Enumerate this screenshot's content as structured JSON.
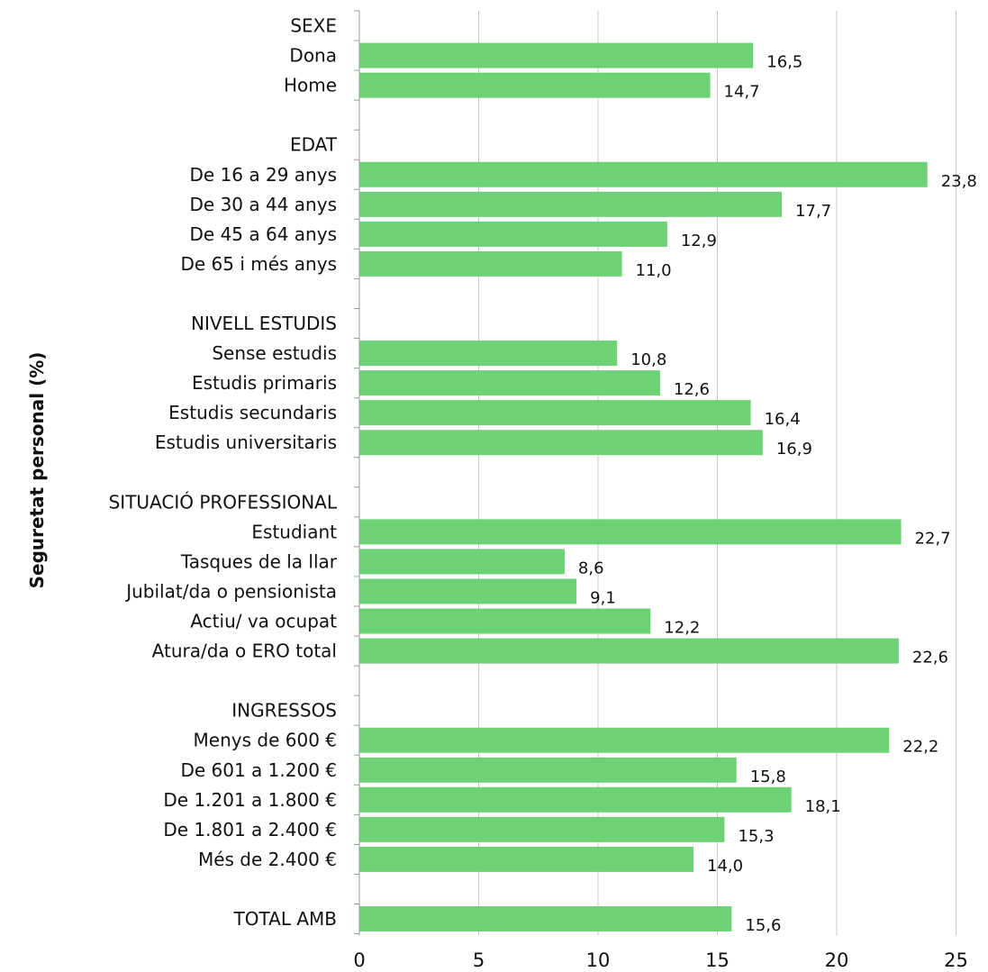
{
  "chart_data": {
    "type": "bar",
    "orientation": "horizontal",
    "ylabel": "Seguretat personal  (%)",
    "xlabel": "",
    "xlim": [
      0,
      25
    ],
    "xticks": [
      "0",
      "5",
      "10",
      "15",
      "20",
      "25"
    ],
    "grid": "vertical",
    "bar_color": "#6dd175",
    "rows": [
      {
        "label": "SEXE",
        "header": true
      },
      {
        "label": "Dona",
        "value": 16.5,
        "value_label": "16,5"
      },
      {
        "label": "Home",
        "value": 14.7,
        "value_label": "14,7"
      },
      {
        "label": "",
        "spacer": true
      },
      {
        "label": "EDAT",
        "header": true
      },
      {
        "label": "De 16 a 29 anys",
        "value": 23.8,
        "value_label": "23,8"
      },
      {
        "label": "De 30 a 44 anys",
        "value": 17.7,
        "value_label": "17,7"
      },
      {
        "label": "De 45 a 64 anys",
        "value": 12.9,
        "value_label": "12,9"
      },
      {
        "label": "De 65 i més anys",
        "value": 11.0,
        "value_label": "11,0"
      },
      {
        "label": "",
        "spacer": true
      },
      {
        "label": "NIVELL ESTUDIS",
        "header": true
      },
      {
        "label": "Sense estudis",
        "value": 10.8,
        "value_label": "10,8"
      },
      {
        "label": "Estudis primaris",
        "value": 12.6,
        "value_label": "12,6"
      },
      {
        "label": "Estudis secundaris",
        "value": 16.4,
        "value_label": "16,4"
      },
      {
        "label": "Estudis universitaris",
        "value": 16.9,
        "value_label": "16,9"
      },
      {
        "label": "",
        "spacer": true
      },
      {
        "label": "SITUACIÓ PROFESSIONAL",
        "header": true
      },
      {
        "label": "Estudiant",
        "value": 22.7,
        "value_label": "22,7"
      },
      {
        "label": "Tasques de la llar",
        "value": 8.6,
        "value_label": "8,6"
      },
      {
        "label": "Jubilat/da o pensionista",
        "value": 9.1,
        "value_label": "9,1"
      },
      {
        "label": "Actiu/ va ocupat",
        "value": 12.2,
        "value_label": "12,2"
      },
      {
        "label": "Atura/da o ERO total",
        "value": 22.6,
        "value_label": "22,6"
      },
      {
        "label": "",
        "spacer": true
      },
      {
        "label": "INGRESSOS",
        "header": true
      },
      {
        "label": "Menys de 600 €",
        "value": 22.2,
        "value_label": "22,2"
      },
      {
        "label": "De 601 a 1.200 €",
        "value": 15.8,
        "value_label": "15,8"
      },
      {
        "label": "De 1.201 a 1.800 €",
        "value": 18.1,
        "value_label": "18,1"
      },
      {
        "label": "De 1.801 a 2.400 €",
        "value": 15.3,
        "value_label": "15,3"
      },
      {
        "label": "Més de 2.400 €",
        "value": 14.0,
        "value_label": "14,0"
      },
      {
        "label": "",
        "spacer": true
      },
      {
        "label": "TOTAL AMB",
        "value": 15.6,
        "value_label": "15,6"
      }
    ]
  }
}
